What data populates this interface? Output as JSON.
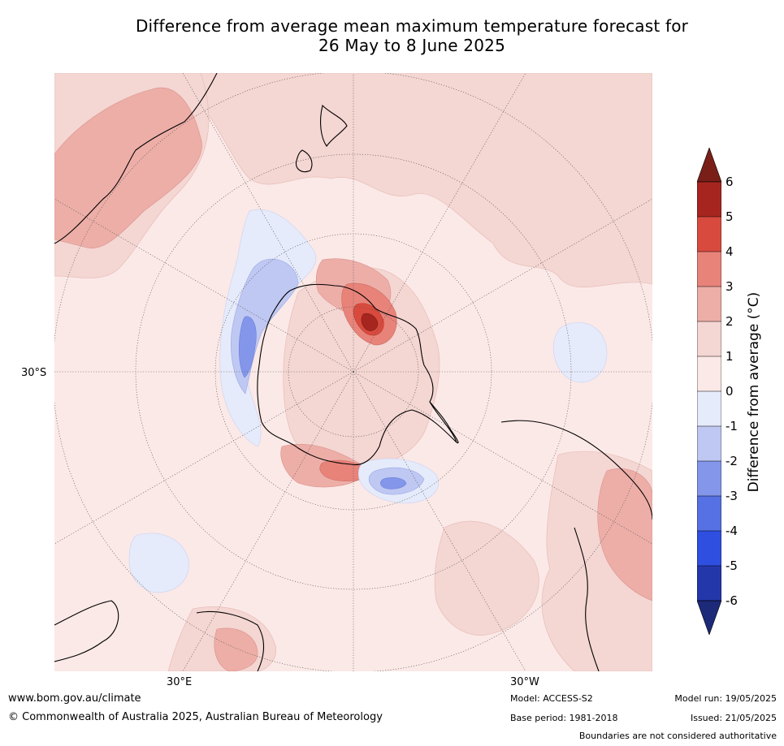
{
  "title": {
    "line1": "Difference from average mean maximum temperature forecast for",
    "line2": "26 May to 8 June 2025"
  },
  "map": {
    "projection": "south-polar-stereographic",
    "lat_label": "30°S",
    "lon_labels": [
      "30°E",
      "30°W"
    ],
    "features": [
      "Antarctica",
      "Australia",
      "New Zealand",
      "South America",
      "Southern Africa"
    ]
  },
  "colorbar": {
    "title": "Difference from average (°C)",
    "ticks": [
      "6",
      "5",
      "4",
      "3",
      "2",
      "1",
      "0",
      "-1",
      "-2",
      "-3",
      "-4",
      "-5",
      "-6"
    ],
    "colors": {
      "gt6": "#7a1f18",
      "5_6": "#a6261f",
      "4_5": "#d94a3e",
      "3_4": "#e8837a",
      "2_3": "#edaea8",
      "1_2": "#f4d6d2",
      "0_1": "#fbe9e7",
      "m1_0": "#e6ebfb",
      "m2_m1": "#bfc8f2",
      "m3_m2": "#8496ea",
      "m4_m3": "#5571e3",
      "m5_m4": "#2f4fe0",
      "m6_m5": "#2437aa",
      "lt_m6": "#1d2a7a"
    }
  },
  "footer": {
    "website": "www.bom.gov.au/climate",
    "copyright": "© Commonwealth of Australia 2025, Australian Bureau of Meteorology",
    "model": "Model: ACCESS-S2",
    "base_period": "Base period: 1981-2018",
    "model_run": "Model run: 19/05/2025",
    "issued": "Issued: 21/05/2025",
    "disclaimer": "Boundaries are not considered authoritative"
  }
}
